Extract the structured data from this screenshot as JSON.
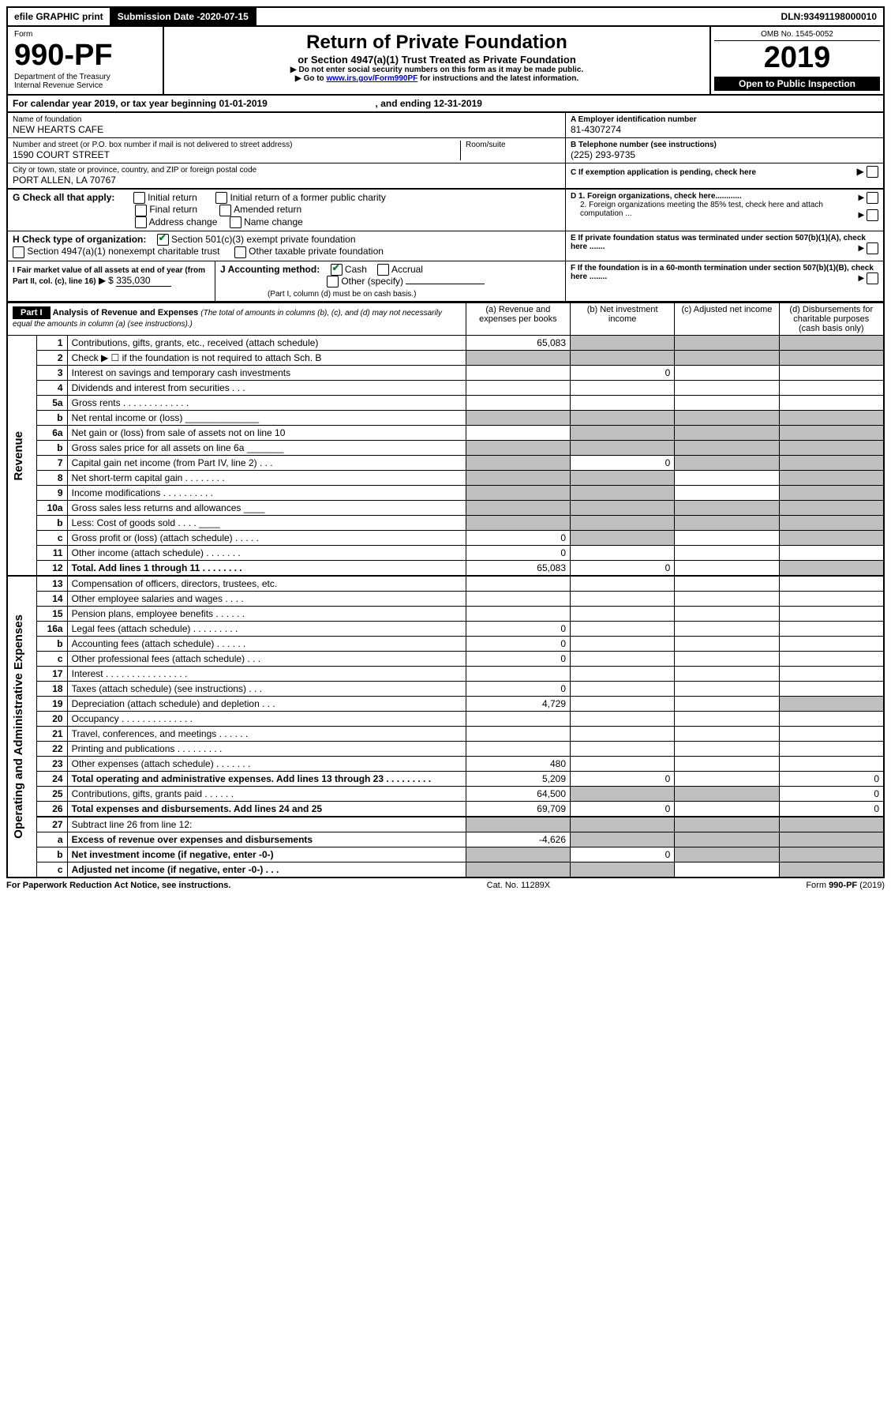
{
  "topbar": {
    "efile": "efile GRAPHIC print",
    "subdate_label": "Submission Date - ",
    "subdate": "2020-07-15",
    "dln_label": "DLN: ",
    "dln": "93491198000010"
  },
  "header": {
    "form_label": "Form",
    "form_num": "990-PF",
    "dept": "Department of the Treasury",
    "irs": "Internal Revenue Service",
    "title": "Return of Private Foundation",
    "subtitle": "or Section 4947(a)(1) Trust Treated as Private Foundation",
    "note1": "Do not enter social security numbers on this form as it may be made public.",
    "note2_pre": "Go to ",
    "note2_link": "www.irs.gov/Form990PF",
    "note2_post": " for instructions and the latest information.",
    "omb": "OMB No. 1545-0052",
    "year": "2019",
    "open": "Open to Public Inspection"
  },
  "cal": {
    "text_a": "For calendar year 2019, or tax year beginning ",
    "begin": "01-01-2019",
    "text_b": " , and ending ",
    "end": "12-31-2019"
  },
  "id": {
    "name_label": "Name of foundation",
    "name": "NEW HEARTS CAFE",
    "a_label": "A Employer identification number",
    "ein": "81-4307274",
    "addr_label": "Number and street (or P.O. box number if mail is not delivered to street address)",
    "room_label": "Room/suite",
    "addr": "1590 COURT STREET",
    "b_label": "B Telephone number (see instructions)",
    "phone": "(225) 293-9735",
    "city_label": "City or town, state or province, country, and ZIP or foreign postal code",
    "city": "PORT ALLEN, LA   70767",
    "c_label": "C If exemption application is pending, check here"
  },
  "g": {
    "label": "G Check all that apply:",
    "opts": [
      "Initial return",
      "Initial return of a former public charity",
      "Final return",
      "Amended return",
      "Address change",
      "Name change"
    ]
  },
  "h": {
    "label": "H Check type of organization:",
    "opt1": "Section 501(c)(3) exempt private foundation",
    "opt2": "Section 4947(a)(1) nonexempt charitable trust",
    "opt3": "Other taxable private foundation"
  },
  "d": {
    "d1": "D 1. Foreign organizations, check here............",
    "d2": "2. Foreign organizations meeting the 85% test, check here and attach computation ..."
  },
  "e_label": "E  If private foundation status was terminated under section 507(b)(1)(A), check here .......",
  "i": {
    "label": "I Fair market value of all assets at end of year (from Part II, col. (c), line 16)",
    "val_pre": "$ ",
    "val": "335,030"
  },
  "j": {
    "label": "J Accounting method:",
    "cash": "Cash",
    "accrual": "Accrual",
    "other": "Other (specify)",
    "note": "(Part I, column (d) must be on cash basis.)"
  },
  "f_label": "F  If the foundation is in a 60-month termination under section 507(b)(1)(B), check here ........",
  "part1": {
    "label": "Part I",
    "title": "Analysis of Revenue and Expenses",
    "sub": " (The total of amounts in columns (b), (c), and (d) may not necessarily equal the amounts in column (a) (see instructions).)",
    "cols": {
      "a": "(a)   Revenue and expenses per books",
      "b": "(b)   Net investment income",
      "c": "(c)   Adjusted net income",
      "d": "(d)   Disbursements for charitable purposes (cash basis only)"
    }
  },
  "sections": {
    "rev": "Revenue",
    "exp": "Operating and Administrative Expenses"
  },
  "lines": [
    {
      "n": "1",
      "t": "Contributions, gifts, grants, etc., received (attach schedule)",
      "a": "65,083",
      "shade": [
        "b",
        "c",
        "d"
      ]
    },
    {
      "n": "2",
      "t": "Check ▶ ☐ if the foundation is not required to attach Sch. B",
      "shade": [
        "a",
        "b",
        "c",
        "d"
      ]
    },
    {
      "n": "3",
      "t": "Interest on savings and temporary cash investments",
      "b": "0"
    },
    {
      "n": "4",
      "t": "Dividends and interest from securities   .  .  ."
    },
    {
      "n": "5a",
      "t": "Gross rents     .  .  .  .  .  .  .  .  .  .  .  .  ."
    },
    {
      "n": "b",
      "t": "Net rental income or (loss)   ______________",
      "shade": [
        "a",
        "b",
        "c",
        "d"
      ]
    },
    {
      "n": "6a",
      "t": "Net gain or (loss) from sale of assets not on line 10",
      "shade": [
        "b",
        "c",
        "d"
      ]
    },
    {
      "n": "b",
      "t": "Gross sales price for all assets on line 6a  _______",
      "shade": [
        "a",
        "b",
        "c",
        "d"
      ]
    },
    {
      "n": "7",
      "t": "Capital gain net income (from Part IV, line 2)   .  .  .",
      "b": "0",
      "shade": [
        "a",
        "c",
        "d"
      ]
    },
    {
      "n": "8",
      "t": "Net short-term capital gain   .  .  .  .  .  .  .  .",
      "shade": [
        "a",
        "b",
        "d"
      ]
    },
    {
      "n": "9",
      "t": "Income modifications   .  .  .  .  .  .  .  .  .  .",
      "shade": [
        "a",
        "b",
        "d"
      ]
    },
    {
      "n": "10a",
      "t": "Gross sales less returns and allowances  ____",
      "shade": [
        "a",
        "b",
        "c",
        "d"
      ]
    },
    {
      "n": "b",
      "t": "Less: Cost of goods sold     .  .  .  .   ____",
      "shade": [
        "a",
        "b",
        "c",
        "d"
      ]
    },
    {
      "n": "c",
      "t": "Gross profit or (loss) (attach schedule)   .  .  .  .  .",
      "a": "0",
      "shade": [
        "b",
        "d"
      ]
    },
    {
      "n": "11",
      "t": "Other income (attach schedule)   .  .  .  .  .  .  .",
      "a": "0"
    },
    {
      "n": "12",
      "t": "Total. Add lines 1 through 11   .  .  .  .  .  .  .  .",
      "a": "65,083",
      "b": "0",
      "shade": [
        "d"
      ],
      "bold": true,
      "hb": true
    }
  ],
  "exp_lines": [
    {
      "n": "13",
      "t": "Compensation of officers, directors, trustees, etc."
    },
    {
      "n": "14",
      "t": "Other employee salaries and wages   .  .  .  ."
    },
    {
      "n": "15",
      "t": "Pension plans, employee benefits   .  .  .  .  .  ."
    },
    {
      "n": "16a",
      "t": "Legal fees (attach schedule)  .  .  .  .  .  .  .  .  .",
      "a": "0"
    },
    {
      "n": "b",
      "t": "Accounting fees (attach schedule)   .  .  .  .  .  .",
      "a": "0"
    },
    {
      "n": "c",
      "t": "Other professional fees (attach schedule)    .  .  .",
      "a": "0"
    },
    {
      "n": "17",
      "t": "Interest   .  .  .  .  .  .  .  .  .  .  .  .  .  .  .  ."
    },
    {
      "n": "18",
      "t": "Taxes (attach schedule) (see instructions)    .  .  .",
      "a": "0"
    },
    {
      "n": "19",
      "t": "Depreciation (attach schedule) and depletion   .  .  .",
      "a": "4,729",
      "shade": [
        "d"
      ]
    },
    {
      "n": "20",
      "t": "Occupancy  .  .  .  .  .  .  .  .  .  .  .  .  .  ."
    },
    {
      "n": "21",
      "t": "Travel, conferences, and meetings  .  .  .  .  .  ."
    },
    {
      "n": "22",
      "t": "Printing and publications  .  .  .  .  .  .  .  .  ."
    },
    {
      "n": "23",
      "t": "Other expenses (attach schedule)  .  .  .  .  .  .  .",
      "a": "480"
    },
    {
      "n": "24",
      "t": "Total operating and administrative expenses. Add lines 13 through 23   .  .  .  .  .  .  .  .  .",
      "a": "5,209",
      "b": "0",
      "d": "0",
      "bold": true
    },
    {
      "n": "25",
      "t": "Contributions, gifts, grants paid     .  .  .  .  .  .",
      "a": "64,500",
      "d": "0",
      "shade": [
        "b",
        "c"
      ]
    },
    {
      "n": "26",
      "t": "Total expenses and disbursements. Add lines 24 and 25",
      "a": "69,709",
      "b": "0",
      "d": "0",
      "bold": true,
      "hb": true
    },
    {
      "n": "27",
      "t": "Subtract line 26 from line 12:",
      "shade": [
        "a",
        "b",
        "c",
        "d"
      ]
    },
    {
      "n": "a",
      "t": "Excess of revenue over expenses and disbursements",
      "a": "-4,626",
      "shade": [
        "b",
        "c",
        "d"
      ],
      "bold": true
    },
    {
      "n": "b",
      "t": "Net investment income (if negative, enter -0-)",
      "b": "0",
      "shade": [
        "a",
        "c",
        "d"
      ],
      "bold": true
    },
    {
      "n": "c",
      "t": "Adjusted net income (if negative, enter -0-)   .  .  .",
      "shade": [
        "a",
        "b",
        "d"
      ],
      "bold": true
    }
  ],
  "footer": {
    "left": "For Paperwork Reduction Act Notice, see instructions.",
    "mid": "Cat. No. 11289X",
    "right": "Form 990-PF (2019)"
  },
  "styling": {
    "shade_color": "#bfbfbf",
    "link_color": "#0000cc",
    "check_color": "#0a7d2c",
    "font": "Arial",
    "base_font_size_pt": 9
  }
}
